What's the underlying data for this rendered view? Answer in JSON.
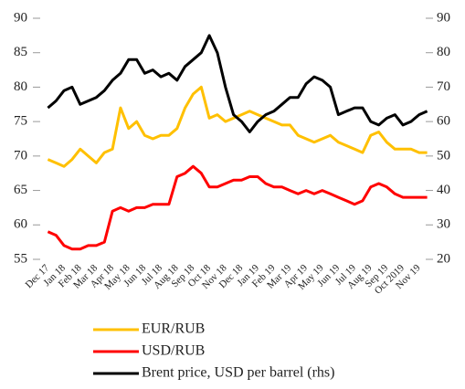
{
  "chart_data": {
    "type": "line",
    "categories": [
      "Dec 17",
      null,
      "Jan 18",
      null,
      "Feb 18",
      null,
      "Mar 18",
      null,
      "Apr 18",
      null,
      "May 18",
      null,
      "Jun 18",
      null,
      "Jul 18",
      null,
      "Aug 18",
      null,
      "Sep 18",
      null,
      "Oct 18",
      null,
      "Nov 18",
      null,
      "Dec 18",
      null,
      "Jan 19",
      null,
      "Feb 19",
      null,
      "Mar 19",
      null,
      "Apr 19",
      null,
      "May 19",
      null,
      "Jun 19",
      null,
      "Jul 19",
      null,
      "Aug 19",
      null,
      "Sep 19",
      null,
      "Oct 2019",
      null,
      "Nov 19",
      null
    ],
    "series": [
      {
        "name": "EUR/RUB",
        "color": "#ffc000",
        "values": [
          69.5,
          69,
          68.5,
          69.5,
          71,
          70,
          69,
          70.5,
          71,
          77,
          74,
          75,
          73,
          72.5,
          73,
          73,
          74,
          77,
          79,
          80,
          75.5,
          76,
          75,
          75.5,
          76,
          76.5,
          76,
          75.5,
          75,
          74.5,
          74.5,
          73,
          72.5,
          72,
          72.5,
          73,
          72,
          71.5,
          71,
          70.5,
          73,
          73.5,
          72,
          71,
          71,
          71,
          70.5,
          70.5
        ]
      },
      {
        "name": "USD/RUB",
        "color": "#ff0000",
        "values": [
          59,
          58.5,
          57,
          56.5,
          56.5,
          57,
          57,
          57.5,
          62,
          62.5,
          62,
          62.5,
          62.5,
          63,
          63,
          63,
          67,
          67.5,
          68.5,
          67.5,
          65.5,
          65.5,
          66,
          66.5,
          66.5,
          67,
          67,
          66,
          65.5,
          65.5,
          65,
          64.5,
          65,
          64.5,
          65,
          64.5,
          64,
          63.5,
          63,
          63.5,
          65.5,
          66,
          65.5,
          64.5,
          64,
          64,
          64,
          64
        ]
      },
      {
        "name": "Brent price, USD per barrel (rhs)",
        "color": "#000000",
        "axis": "y2",
        "values": [
          64,
          66,
          69,
          70,
          65,
          66,
          67,
          69,
          72,
          74,
          78,
          78,
          74,
          75,
          73,
          74,
          72,
          76,
          78,
          80,
          85,
          80,
          70,
          62,
          60,
          57,
          60,
          62,
          63,
          65,
          67,
          67,
          71,
          73,
          72,
          70,
          62,
          63,
          64,
          64,
          60,
          59,
          61,
          62,
          59,
          60,
          62,
          63
        ]
      }
    ],
    "ylim": [
      55,
      90
    ],
    "yticks": [
      55,
      60,
      65,
      70,
      75,
      80,
      85,
      90
    ],
    "y2lim": [
      20,
      90
    ],
    "y2ticks": [
      20,
      30,
      40,
      50,
      60,
      70,
      80,
      90
    ]
  }
}
